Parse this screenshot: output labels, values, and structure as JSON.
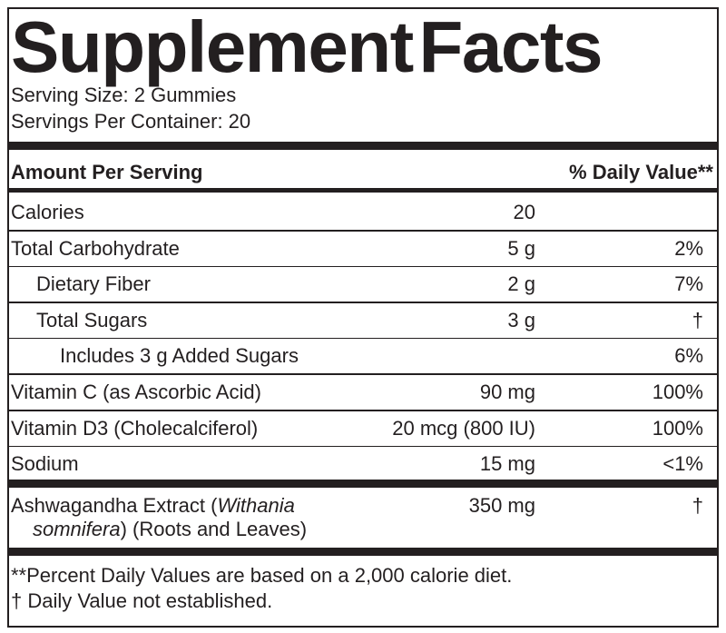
{
  "title": "Supplement Facts",
  "serving_size": "Serving Size: 2 Gummies",
  "servings_per_container": "Servings Per Container: 20",
  "header": {
    "amount": "Amount Per Serving",
    "daily_value": "% Daily Value**"
  },
  "rows": [
    {
      "name": "Calories",
      "amount": "20"
    },
    {
      "name": "Total Carbohydrate",
      "amount": "5 g",
      "daily_value": "2%"
    },
    {
      "name": "Dietary Fiber",
      "amount": "2 g",
      "daily_value": "7%"
    },
    {
      "name": "Total Sugars",
      "amount": "3 g",
      "daily_value": "†"
    },
    {
      "name": "Includes 3 g Added Sugars",
      "daily_value": "6%"
    },
    {
      "name": "Vitamin C (as Ascorbic Acid)",
      "amount": "90 mg",
      "daily_value": "100%"
    },
    {
      "name": "Vitamin D3 (Cholecalciferol)",
      "amount": "20 mcg (800 IU)",
      "daily_value": "100%"
    },
    {
      "name": "Sodium",
      "amount": "15 mg",
      "daily_value": "<1%"
    }
  ],
  "botanical": {
    "name_parts": [
      "Ashwagandha Extract (",
      "Withania",
      "somnifera",
      ") (Roots and Leaves)"
    ],
    "amount": "350 mg",
    "daily_value": "†"
  },
  "footnotes": [
    "**Percent Daily Values are based on a 2,000 calorie diet.",
    "† Daily Value not established."
  ]
}
